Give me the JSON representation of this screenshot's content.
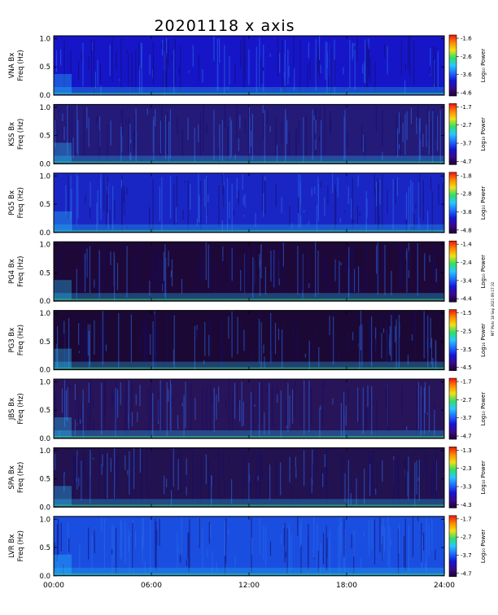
{
  "title": "20201118 x axis",
  "footnote": "MIT Plots 18 Sep 2021 09:17:32",
  "colorbar_label": "Log₁₀ Power",
  "colormap": [
    "#1c0033",
    "#3a0a8a",
    "#1515d6",
    "#1f6dff",
    "#28c8ff",
    "#33dd66",
    "#f0e018",
    "#ff8800",
    "#ee1111"
  ],
  "chart_data": {
    "type": "heatmap",
    "x_tick_labels": [
      "00:00",
      "06:00",
      "12:00",
      "18:00",
      "24:00"
    ],
    "xlim_hours": [
      0,
      24
    ],
    "y_tick_labels": [
      "0.0",
      "0.5",
      "1.0"
    ],
    "ylim_hz": [
      0,
      1.05
    ],
    "panels": [
      {
        "ylabel_line1": "VNA Bx",
        "ylabel_line2": "Freq (Hz)",
        "colorbar_ticks": [
          "-1.6",
          "-2.6",
          "-3.6",
          "-4.6"
        ],
        "background": "#1616c8"
      },
      {
        "ylabel_line1": "KSS Bx",
        "ylabel_line2": "Freq (Hz)",
        "colorbar_ticks": [
          "-1.7",
          "-2.7",
          "-3.7",
          "-4.7"
        ],
        "background": "#241a78"
      },
      {
        "ylabel_line1": "PG5 Bx",
        "ylabel_line2": "Freq (Hz)",
        "colorbar_ticks": [
          "-1.8",
          "-2.8",
          "-3.8",
          "-4.8"
        ],
        "background": "#1a26c4"
      },
      {
        "ylabel_line1": "PG4 Bx",
        "ylabel_line2": "Freq (Hz)",
        "colorbar_ticks": [
          "-1.4",
          "-2.4",
          "-3.4",
          "-4.4"
        ],
        "background": "#1e0838"
      },
      {
        "ylabel_line1": "PG3 Bx",
        "ylabel_line2": "Freq (Hz)",
        "colorbar_ticks": [
          "-1.5",
          "-2.5",
          "-3.5",
          "-4.5"
        ],
        "background": "#1c0834"
      },
      {
        "ylabel_line1": "JBS Bx",
        "ylabel_line2": "Freq (Hz)",
        "colorbar_ticks": [
          "-1.7",
          "-2.7",
          "-3.7",
          "-4.7"
        ],
        "background": "#281458"
      },
      {
        "ylabel_line1": "SPA Bx",
        "ylabel_line2": "Freq (Hz)",
        "colorbar_ticks": [
          "-1.3",
          "-2.3",
          "-3.3",
          "-4.3"
        ],
        "background": "#221250"
      },
      {
        "ylabel_line1": "LVR Bx",
        "ylabel_line2": "Freq (Hz)",
        "colorbar_ticks": [
          "-1.7",
          "-2.7",
          "-3.7",
          "-4.7"
        ],
        "background": "#1a4ee0"
      }
    ]
  }
}
